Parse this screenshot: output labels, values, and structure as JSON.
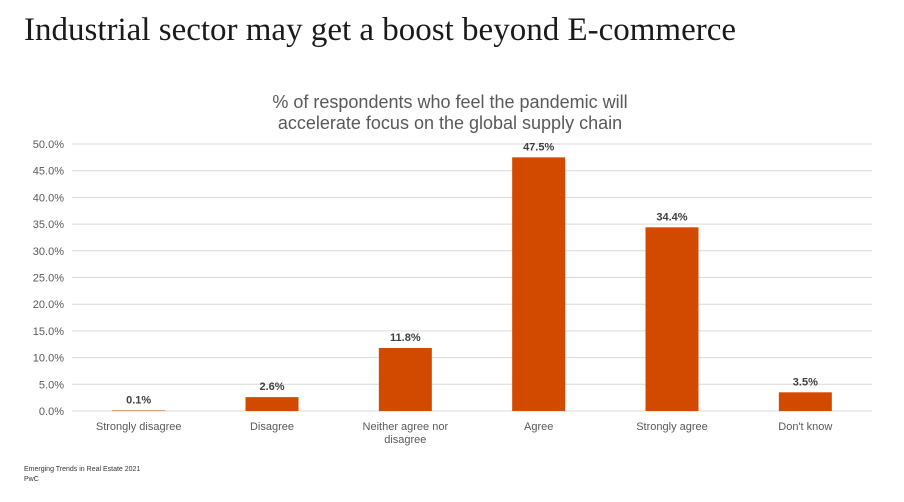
{
  "page_title": "Industrial sector may get a boost beyond E-commerce",
  "source": {
    "line1": "Emerging Trends in Real Estate 2021",
    "line2": "PwC"
  },
  "colors": {
    "bar": "#d24a00",
    "grid": "#d9d9d9",
    "axis_text": "#595959",
    "label_text": "#404040"
  },
  "chart_data": {
    "type": "bar",
    "title_lines": [
      "% of respondents who feel the pandemic will",
      "accelerate focus on the global supply chain"
    ],
    "categories": [
      "Strongly disagree",
      "Disagree",
      "Neither agree nor disagree",
      "Agree",
      "Strongly agree",
      "Don't know"
    ],
    "values": [
      0.1,
      2.6,
      11.8,
      47.5,
      34.4,
      3.5
    ],
    "data_labels": [
      "0.1%",
      "2.6%",
      "11.8%",
      "47.5%",
      "34.4%",
      "3.5%"
    ],
    "ylim": [
      0,
      50
    ],
    "yticks": [
      0,
      5,
      10,
      15,
      20,
      25,
      30,
      35,
      40,
      45,
      50
    ],
    "ytick_labels": [
      "0.0%",
      "5.0%",
      "10.0%",
      "15.0%",
      "20.0%",
      "25.0%",
      "30.0%",
      "35.0%",
      "40.0%",
      "45.0%",
      "50.0%"
    ],
    "grid": true,
    "legend": "none"
  }
}
